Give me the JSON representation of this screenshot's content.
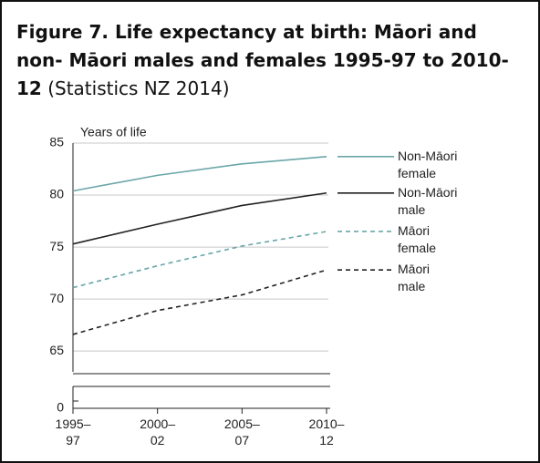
{
  "chart_data": {
    "type": "line",
    "title": "Figure 7. Life expectancy at birth: Māori and non- Māori males and females 1995-97 to 2010-12",
    "source": "(Statistics NZ 2014)",
    "y_label": "Years of life",
    "categories": [
      "1995–97",
      "2000–02",
      "2005–07",
      "2010–12"
    ],
    "series": [
      {
        "name": "Non-Māori female",
        "color": "#6aa6a8",
        "dashed": false,
        "values": [
          80.4,
          81.9,
          83.0,
          83.7
        ]
      },
      {
        "name": "Non-Māori male",
        "color": "#222222",
        "dashed": false,
        "values": [
          75.3,
          77.2,
          79.0,
          80.2
        ]
      },
      {
        "name": "Māori female",
        "color": "#6aa6a8",
        "dashed": true,
        "values": [
          71.1,
          73.2,
          75.1,
          76.5
        ]
      },
      {
        "name": "Māori male",
        "color": "#222222",
        "dashed": true,
        "values": [
          66.6,
          68.9,
          70.4,
          72.8
        ]
      }
    ],
    "ylim": [
      63,
      85
    ],
    "yticks": [
      0,
      65,
      70,
      75,
      80,
      85
    ],
    "axis_break": true,
    "grid": true
  }
}
